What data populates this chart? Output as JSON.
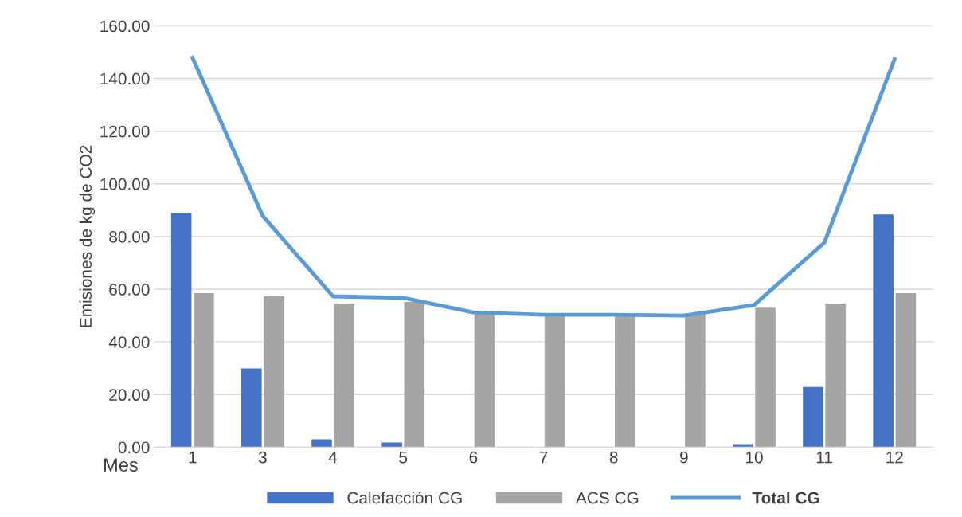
{
  "chart_data": {
    "type": "bar",
    "xlabel": "Mes",
    "ylabel": "Emisiones de kg de CO2",
    "categories": [
      "1",
      "3",
      "4",
      "5",
      "6",
      "7",
      "8",
      "9",
      "10",
      "11",
      "12"
    ],
    "series": [
      {
        "name": "Calefacción CG",
        "color": "#4472c4",
        "values": [
          89.0,
          29.9,
          3.0,
          1.8,
          0,
          0,
          0,
          0,
          1.2,
          22.9,
          88.4
        ]
      },
      {
        "name": "ACS CG",
        "color": "#a5a5a5",
        "values": [
          58.5,
          57.3,
          54.6,
          55.2,
          50.6,
          50.3,
          50.3,
          50.3,
          53.0,
          54.6,
          58.5
        ]
      },
      {
        "name": "Total CG",
        "type": "line",
        "color": "#5b9bd5",
        "values": [
          147.9,
          87.8,
          57.3,
          56.7,
          51.2,
          50.3,
          50.3,
          50.0,
          54.0,
          77.7,
          147.3
        ]
      }
    ],
    "ylim": [
      0,
      160
    ],
    "yticks": [
      {
        "value": 0,
        "label": "0.00"
      },
      {
        "value": 20,
        "label": "20.00"
      },
      {
        "value": 40,
        "label": "40.00"
      },
      {
        "value": 60,
        "label": "60.00"
      },
      {
        "value": 80,
        "label": "80.00"
      },
      {
        "value": 100,
        "label": "100.00"
      },
      {
        "value": 120,
        "label": "120.00"
      },
      {
        "value": 140,
        "label": "140.00"
      },
      {
        "value": 160,
        "label": "160.00"
      }
    ],
    "grid": "y",
    "legend": "bottom",
    "marker": "none",
    "line_style": "solid"
  }
}
